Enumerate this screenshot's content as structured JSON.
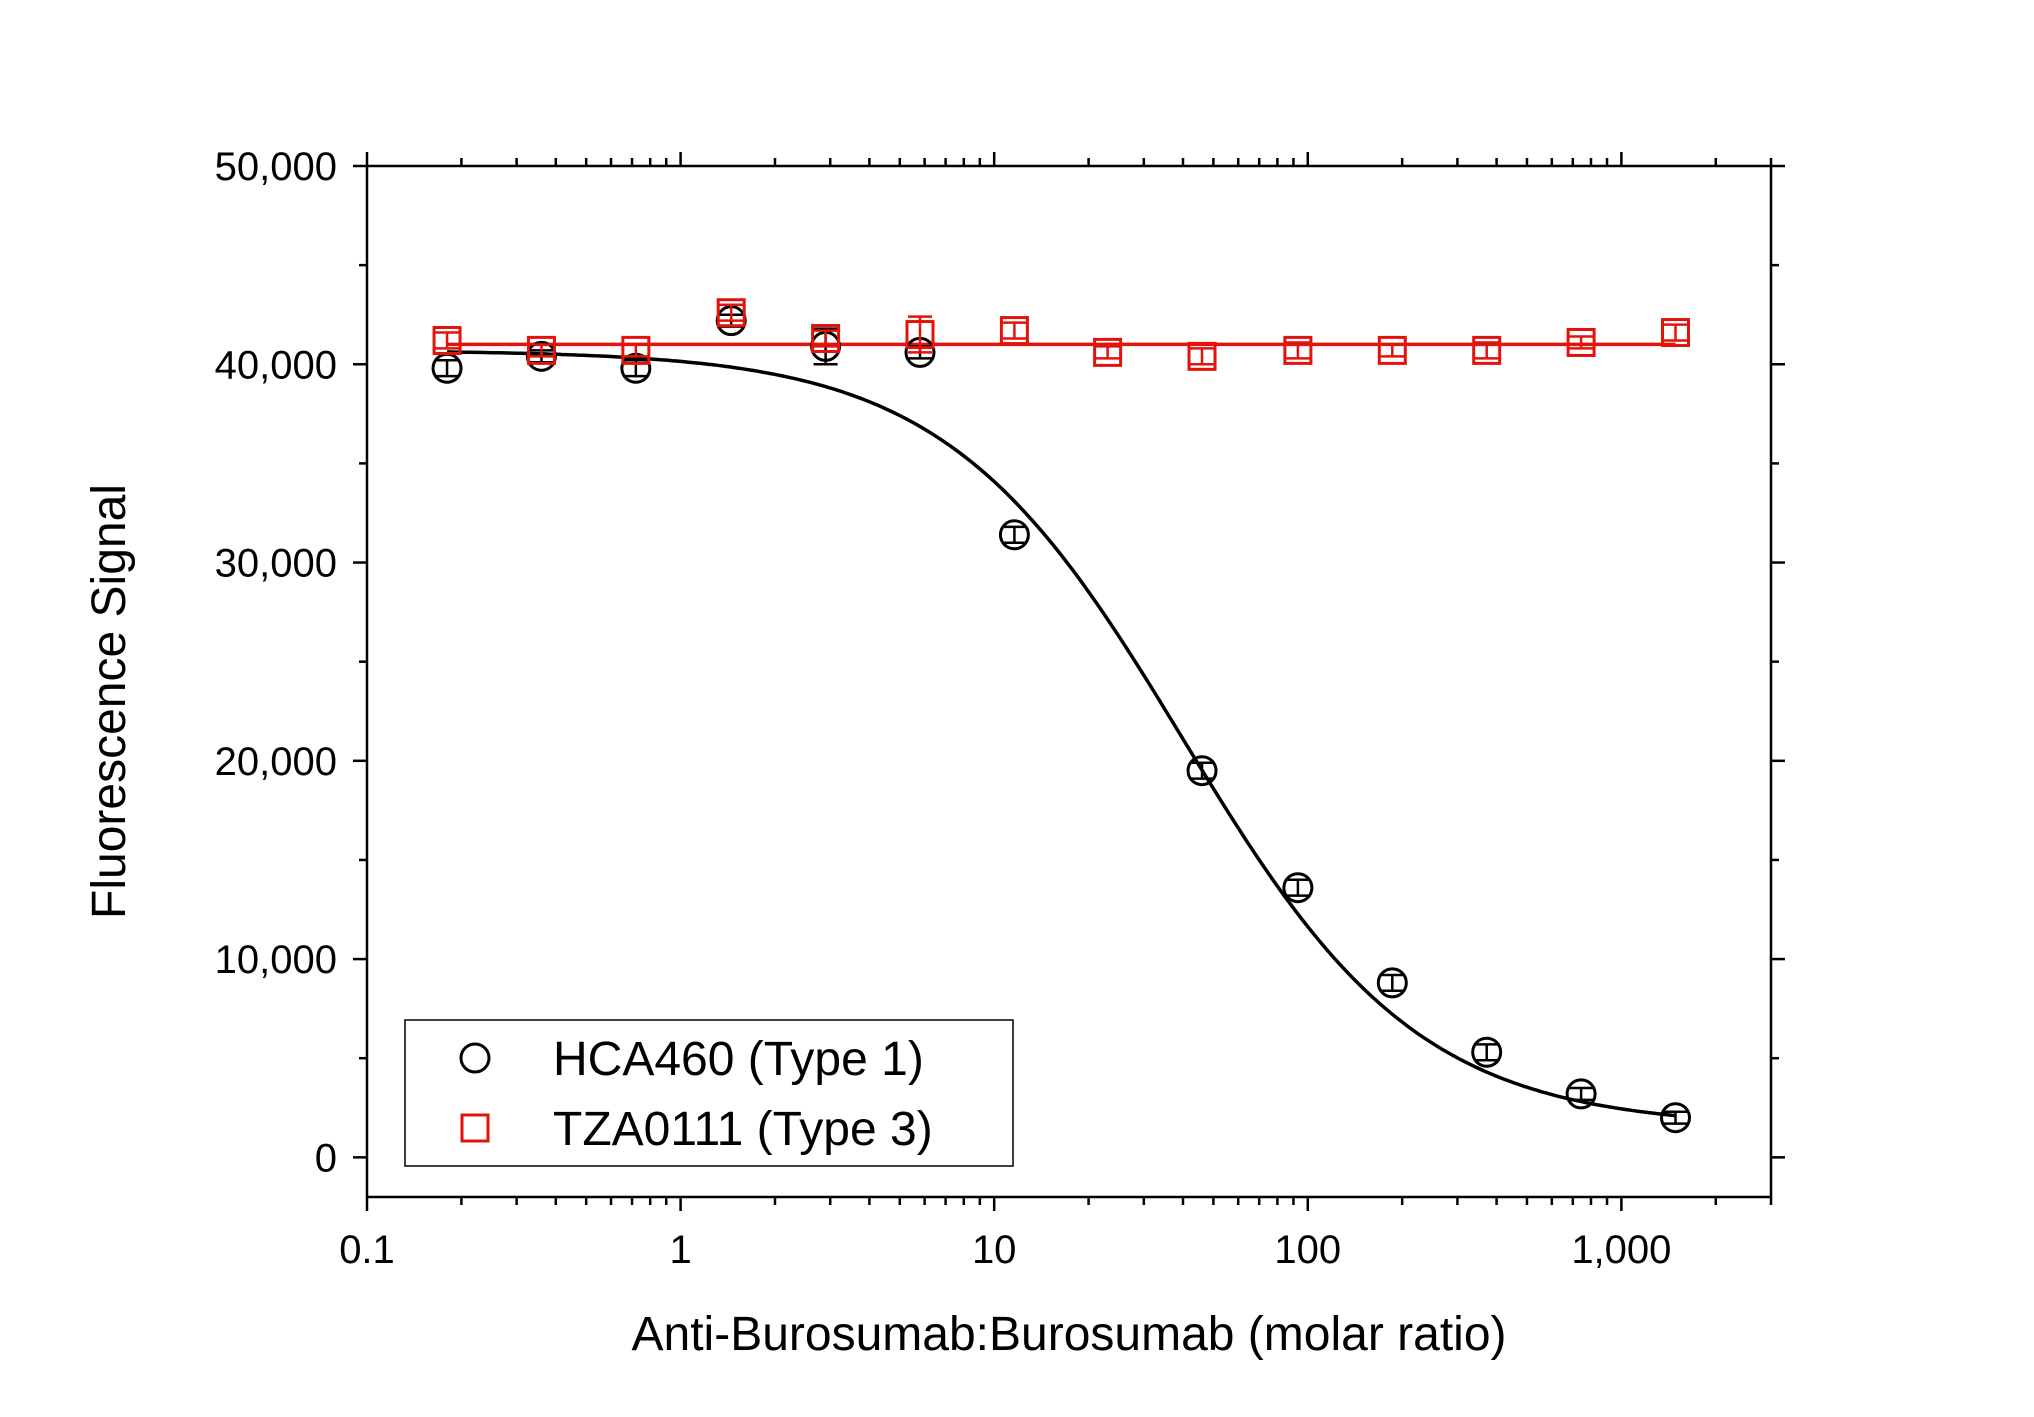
{
  "chart_data": {
    "type": "scatter",
    "title": "",
    "xlabel": "Anti-Burosumab:Burosumab (molar ratio)",
    "ylabel": "Fluorescence Signal",
    "x_scale": "log",
    "xlim": [
      0.1,
      3000
    ],
    "ylim": [
      -2000,
      50000
    ],
    "x_ticks": [
      0.1,
      1,
      10,
      100,
      1000
    ],
    "x_tick_labels": [
      "0.1",
      "1",
      "10",
      "100",
      "1,000"
    ],
    "y_ticks": [
      0,
      10000,
      20000,
      30000,
      40000,
      50000
    ],
    "y_tick_labels": [
      "0",
      "10,000",
      "20,000",
      "30,000",
      "40,000",
      "50,000"
    ],
    "grid": false,
    "legend_position": "bottom-left",
    "series": [
      {
        "name": "HCA460 (Type 1)",
        "marker": "circle",
        "color": "#000000",
        "x": [
          0.18,
          0.36,
          0.72,
          1.45,
          2.9,
          5.8,
          11.6,
          46,
          93,
          186,
          372,
          744,
          1488
        ],
        "y": [
          39800,
          40400,
          39800,
          42200,
          40900,
          40600,
          31400,
          19500,
          13600,
          8800,
          5300,
          3200,
          2000
        ],
        "err": [
          400,
          300,
          400,
          300,
          900,
          300,
          400,
          400,
          400,
          400,
          400,
          300,
          300
        ],
        "fit": {
          "model": "4PL",
          "top": 40700,
          "bottom": 1500,
          "ec50": 40,
          "hill": 1.15
        }
      },
      {
        "name": "TZA0111 (Type 3)",
        "marker": "square",
        "color": "#e3120b",
        "x": [
          0.18,
          0.36,
          0.72,
          1.45,
          2.9,
          5.8,
          11.6,
          23,
          46,
          93,
          186,
          372,
          744,
          1488
        ],
        "y": [
          41200,
          40700,
          40700,
          42600,
          41300,
          41500,
          41700,
          40600,
          40400,
          40700,
          40700,
          40700,
          41100,
          41600
        ],
        "err": [
          400,
          300,
          300,
          400,
          400,
          900,
          400,
          300,
          400,
          400,
          300,
          400,
          300,
          400
        ],
        "fit": {
          "model": "constant",
          "value": 41000
        }
      }
    ]
  }
}
